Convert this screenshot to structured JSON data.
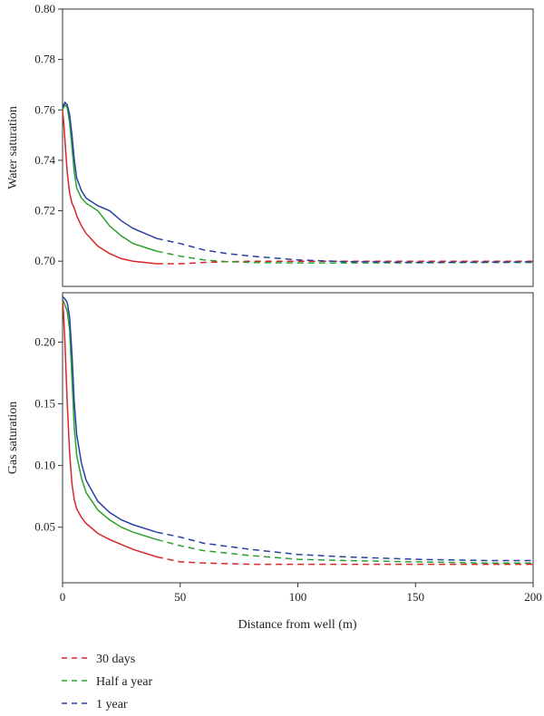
{
  "chart_data": [
    {
      "type": "line",
      "panel": "top",
      "ylabel": "Water saturation",
      "xlim": [
        0,
        200
      ],
      "ylim": [
        0.69,
        0.8
      ],
      "yticks": [
        "0.70",
        "0.72",
        "0.74",
        "0.76",
        "0.78",
        "0.80"
      ],
      "grid": false,
      "series": [
        {
          "name": "30 days",
          "color": "#d62728",
          "x": [
            0,
            0.5,
            1,
            2,
            3,
            4,
            5,
            6,
            8,
            10,
            15,
            20,
            25,
            30,
            35,
            40,
            50,
            60,
            70,
            80,
            100,
            120,
            150,
            180,
            200
          ],
          "y": [
            0.76,
            0.755,
            0.748,
            0.735,
            0.727,
            0.723,
            0.721,
            0.718,
            0.714,
            0.711,
            0.706,
            0.703,
            0.701,
            0.7,
            0.6995,
            0.699,
            0.699,
            0.6995,
            0.6998,
            0.7,
            0.7,
            0.7,
            0.7,
            0.7,
            0.7
          ]
        },
        {
          "name": "Half a year",
          "color": "#2ca02c",
          "x": [
            0,
            1,
            2,
            3,
            4,
            5,
            6,
            8,
            10,
            15,
            20,
            25,
            30,
            40,
            50,
            60,
            70,
            80,
            100,
            120,
            150,
            180,
            200
          ],
          "y": [
            0.76,
            0.762,
            0.761,
            0.755,
            0.745,
            0.735,
            0.729,
            0.725,
            0.723,
            0.72,
            0.714,
            0.71,
            0.707,
            0.704,
            0.702,
            0.7005,
            0.6998,
            0.6995,
            0.6993,
            0.6993,
            0.6994,
            0.6995,
            0.6995
          ]
        },
        {
          "name": "1 year",
          "color": "#2a3fa0",
          "x": [
            0,
            1,
            2,
            3,
            4,
            5,
            6,
            8,
            10,
            15,
            20,
            25,
            30,
            40,
            50,
            60,
            70,
            80,
            100,
            120,
            150,
            180,
            200
          ],
          "y": [
            0.761,
            0.763,
            0.762,
            0.758,
            0.75,
            0.74,
            0.733,
            0.728,
            0.725,
            0.722,
            0.72,
            0.716,
            0.713,
            0.709,
            0.707,
            0.7045,
            0.703,
            0.702,
            0.7005,
            0.6998,
            0.6995,
            0.6996,
            0.6997
          ]
        }
      ]
    },
    {
      "type": "line",
      "panel": "bottom",
      "ylabel": "Gas saturation",
      "xlabel": "Distance from well (m)",
      "xlim": [
        0,
        200
      ],
      "ylim": [
        0.005,
        0.24
      ],
      "xticks": [
        "0",
        "50",
        "100",
        "150",
        "200"
      ],
      "yticks": [
        "0.05",
        "0.10",
        "0.15",
        "0.20"
      ],
      "grid": false,
      "series": [
        {
          "name": "30 days",
          "color": "#d62728",
          "x": [
            0,
            0.5,
            1,
            2,
            3,
            4,
            5,
            6,
            8,
            10,
            15,
            20,
            25,
            30,
            40,
            50,
            60,
            80,
            100,
            120,
            150,
            180,
            200
          ],
          "y": [
            0.235,
            0.22,
            0.2,
            0.15,
            0.11,
            0.085,
            0.072,
            0.065,
            0.058,
            0.053,
            0.045,
            0.04,
            0.036,
            0.032,
            0.026,
            0.022,
            0.021,
            0.02,
            0.02,
            0.02,
            0.02,
            0.02,
            0.02
          ]
        },
        {
          "name": "Half a year",
          "color": "#2ca02c",
          "x": [
            0,
            1,
            2,
            3,
            4,
            5,
            6,
            8,
            10,
            15,
            20,
            25,
            30,
            40,
            50,
            60,
            80,
            100,
            120,
            150,
            180,
            200
          ],
          "y": [
            0.235,
            0.23,
            0.225,
            0.21,
            0.17,
            0.13,
            0.108,
            0.09,
            0.078,
            0.064,
            0.056,
            0.05,
            0.046,
            0.04,
            0.035,
            0.031,
            0.027,
            0.024,
            0.023,
            0.022,
            0.021,
            0.021
          ]
        },
        {
          "name": "1 year",
          "color": "#2a3fa0",
          "x": [
            0,
            1,
            2,
            3,
            4,
            5,
            6,
            8,
            10,
            15,
            20,
            25,
            30,
            40,
            50,
            60,
            80,
            100,
            120,
            150,
            180,
            200
          ],
          "y": [
            0.237,
            0.235,
            0.232,
            0.22,
            0.19,
            0.15,
            0.125,
            0.102,
            0.088,
            0.071,
            0.062,
            0.056,
            0.052,
            0.046,
            0.042,
            0.037,
            0.032,
            0.028,
            0.026,
            0.024,
            0.023,
            0.023
          ]
        }
      ]
    }
  ],
  "legend": {
    "placement": "bottom-left",
    "entries": [
      {
        "label": "30 days",
        "color": "#d62728"
      },
      {
        "label": "Half a year",
        "color": "#2ca02c"
      },
      {
        "label": "1 year",
        "color": "#2a3fa0"
      }
    ]
  }
}
